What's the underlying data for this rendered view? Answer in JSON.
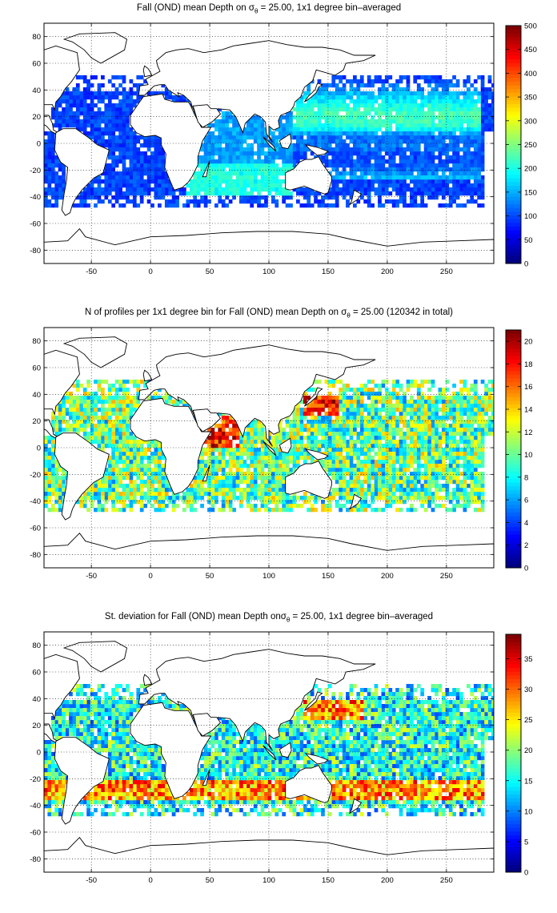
{
  "panels": [
    {
      "title_pre": "Fall (OND) mean Depth on ",
      "title_sym": "σ",
      "title_sub": "θ",
      "title_post": " = 25.00, 1x1 degree bin–averaged",
      "colorbar_ticks": [
        "0",
        "50",
        "100",
        "150",
        "200",
        "250",
        "300",
        "350",
        "400",
        "450",
        "500"
      ],
      "color_range": [
        0,
        500
      ]
    },
    {
      "title_pre": "N of profiles per 1x1 degree bin for Fall (OND) mean Depth on ",
      "title_sym": "σ",
      "title_sub": "θ",
      "title_post": " = 25.00 (120342 in total)",
      "colorbar_ticks": [
        "0",
        "2",
        "4",
        "6",
        "8",
        "10",
        "12",
        "14",
        "16",
        "18",
        "20"
      ],
      "color_range": [
        0,
        21
      ]
    },
    {
      "title_pre": "St. deviation for Fall (OND) mean Depth on",
      "title_sym": "σ",
      "title_sub": "θ",
      "title_post": " = 25.00, 1x1 degree bin–averaged",
      "colorbar_ticks": [
        "0",
        "5",
        "10",
        "15",
        "20",
        "25",
        "30",
        "35"
      ],
      "color_range": [
        0,
        39
      ]
    }
  ],
  "map": {
    "xticks": [
      "-50",
      "0",
      "50",
      "100",
      "150",
      "200",
      "250"
    ],
    "xtick_values": [
      -50,
      0,
      50,
      100,
      150,
      200,
      250
    ],
    "yticks": [
      "80",
      "60",
      "40",
      "20",
      "0",
      "-20",
      "-40",
      "-60",
      "-80"
    ],
    "ytick_values": [
      80,
      60,
      40,
      20,
      0,
      -20,
      -40,
      -60,
      -80
    ],
    "lon_range": [
      -90,
      290
    ],
    "lat_range": [
      -90,
      90
    ],
    "colormap": "jet",
    "grid": true,
    "grid_style": "dotted"
  }
}
